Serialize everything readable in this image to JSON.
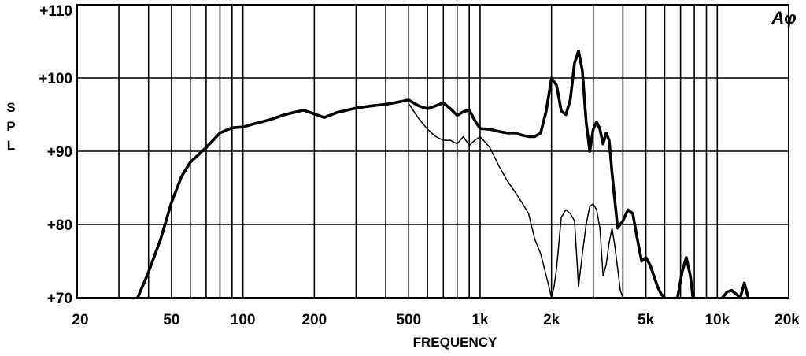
{
  "logo_text": "Aφ",
  "chart_data": {
    "type": "line",
    "title": "",
    "xlabel": "FREQUENCY",
    "ylabel": "S P L",
    "x_scale": "log",
    "xlim": [
      20,
      20000
    ],
    "ylim": [
      70,
      110
    ],
    "grid": true,
    "x_tick_values": [
      20,
      50,
      100,
      200,
      500,
      1000,
      2000,
      5000,
      10000,
      20000
    ],
    "x_tick_labels": [
      "20",
      "50",
      "100",
      "200",
      "500",
      "1k",
      "2k",
      "5k",
      "10k",
      "20k"
    ],
    "y_tick_values": [
      70,
      80,
      90,
      100,
      110
    ],
    "y_tick_labels": [
      "+70",
      "+80",
      "+90",
      "+100",
      "+110"
    ],
    "series": [
      {
        "style": "thick",
        "x": [
          36,
          40,
          45,
          50,
          55,
          60,
          70,
          80,
          90,
          100,
          110,
          130,
          150,
          180,
          200,
          220,
          250,
          300,
          350,
          400,
          450,
          500,
          550,
          600,
          650,
          700,
          750,
          800,
          850,
          900,
          950,
          1000,
          1100,
          1200,
          1300,
          1400,
          1500,
          1600,
          1700,
          1800,
          1900,
          2000,
          2100,
          2200,
          2300,
          2400,
          2500,
          2600,
          2700,
          2800,
          2900,
          3000,
          3100,
          3200,
          3300,
          3400,
          3500,
          3600,
          3800,
          4000,
          4200,
          4400,
          4600,
          4800,
          5000,
          5200,
          5400,
          5600,
          5800,
          6000
        ],
        "y": [
          70,
          73.5,
          78,
          83,
          86.5,
          88.5,
          90.5,
          92.5,
          93.2,
          93.3,
          93.7,
          94.3,
          95.0,
          95.6,
          95.1,
          94.6,
          95.3,
          95.9,
          96.2,
          96.4,
          96.7,
          97.0,
          96.2,
          95.8,
          96.2,
          96.6,
          95.8,
          94.9,
          95.4,
          95.6,
          94.2,
          93.1,
          93.0,
          92.7,
          92.5,
          92.5,
          92.2,
          92.0,
          92.0,
          92.5,
          95.5,
          100.0,
          99.0,
          95.5,
          95.0,
          97.0,
          102.0,
          103.7,
          101.0,
          94.0,
          90.0,
          93.0,
          94.0,
          93.0,
          91.0,
          92.5,
          91.5,
          87.0,
          79.5,
          80.5,
          82.0,
          81.5,
          78.0,
          75.0,
          75.5,
          74.5,
          73.0,
          71.5,
          70.5,
          70
        ],
        "x2": [
          6800,
          7100,
          7400,
          7700,
          7900
        ],
        "y2": [
          70,
          73.5,
          75.5,
          73.0,
          70
        ],
        "x3": [
          10500,
          11000,
          11500,
          12000,
          12500,
          13000,
          13500
        ],
        "y3": [
          70,
          70.8,
          71.0,
          70.5,
          70,
          72.0,
          70
        ]
      },
      {
        "style": "thin",
        "x": [
          500,
          550,
          600,
          650,
          700,
          750,
          800,
          850,
          900,
          950,
          1000,
          1100,
          1200,
          1300,
          1400,
          1500,
          1600,
          1700,
          1800,
          1900,
          2000,
          2050,
          2100,
          2200,
          2300,
          2400,
          2500,
          2550,
          2600,
          2700,
          2800,
          2900,
          3000,
          3100,
          3200,
          3300,
          3400,
          3500,
          3600,
          3700,
          3800,
          3900,
          4000
        ],
        "y": [
          96.5,
          94.5,
          93.0,
          92.0,
          91.5,
          91.5,
          91.0,
          92.0,
          90.8,
          91.5,
          92.0,
          90.5,
          88.0,
          86.0,
          84.5,
          83.0,
          81.5,
          78.0,
          76.0,
          73.0,
          70.0,
          71.5,
          74.0,
          81.0,
          82.0,
          81.5,
          80.5,
          76.0,
          71.5,
          76.0,
          80.0,
          82.5,
          82.8,
          82.0,
          79.5,
          73.0,
          74.5,
          77.5,
          79.5,
          77.0,
          74.0,
          71.0,
          70.0
        ]
      }
    ]
  }
}
